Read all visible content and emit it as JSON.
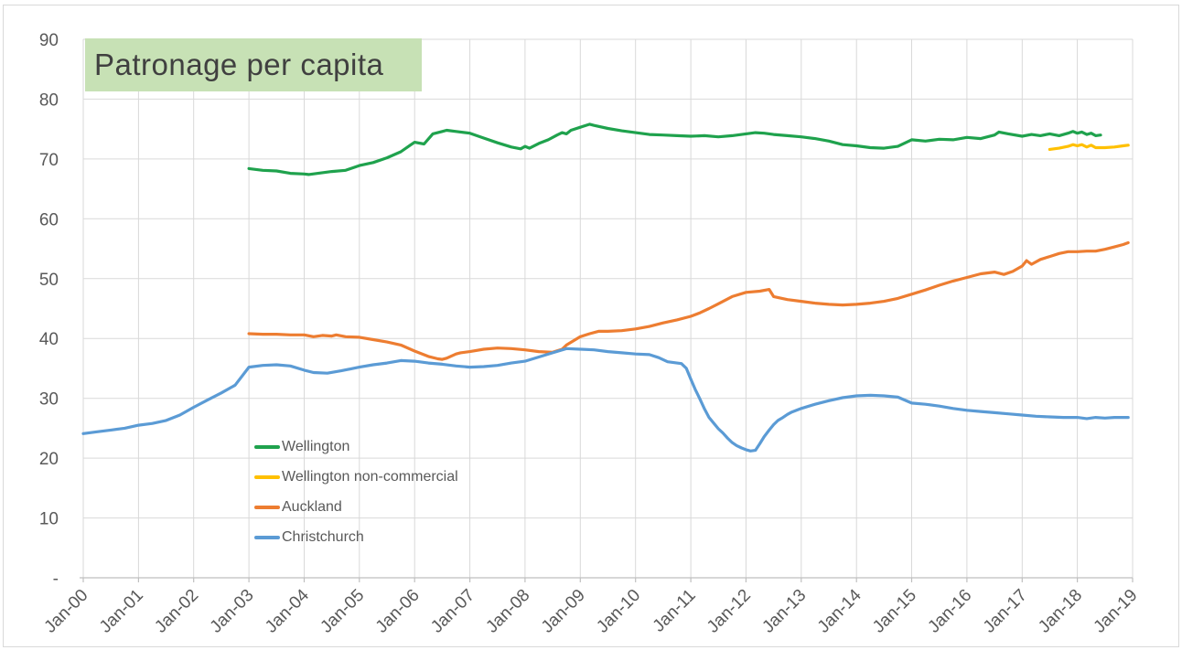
{
  "title": {
    "text": "Patronage per capita",
    "background": "#c7e1b5",
    "text_color": "#404040"
  },
  "chart_data": {
    "type": "line",
    "title": "Patronage per capita",
    "xlabel": "",
    "ylabel": "",
    "grid": true,
    "legend_position": "inside-bottom-left",
    "grid_color": "#d9d9d9",
    "axis_color": "#bfbfbf",
    "label_color": "#595959",
    "x_axis": {
      "range": [
        2000,
        2019
      ],
      "tick_values": [
        2000,
        2001,
        2002,
        2003,
        2004,
        2005,
        2006,
        2007,
        2008,
        2009,
        2010,
        2011,
        2012,
        2013,
        2014,
        2015,
        2016,
        2017,
        2018,
        2019
      ],
      "tick_labels": [
        "Jan-00",
        "Jan-01",
        "Jan-02",
        "Jan-03",
        "Jan-04",
        "Jan-05",
        "Jan-06",
        "Jan-07",
        "Jan-08",
        "Jan-09",
        "Jan-10",
        "Jan-11",
        "Jan-12",
        "Jan-13",
        "Jan-14",
        "Jan-15",
        "Jan-16",
        "Jan-17",
        "Jan-18",
        "Jan-19"
      ]
    },
    "y_axis": {
      "range": [
        0,
        90
      ],
      "tick_values": [
        0,
        10,
        20,
        30,
        40,
        50,
        60,
        70,
        80,
        90
      ],
      "tick_labels": [
        "-",
        "10",
        "20",
        "30",
        "40",
        "50",
        "60",
        "70",
        "80",
        "90"
      ]
    },
    "series": [
      {
        "name": "Wellington",
        "color": "#1fa24d",
        "points": [
          [
            2003.0,
            68.4
          ],
          [
            2003.25,
            68.1
          ],
          [
            2003.5,
            68.0
          ],
          [
            2003.75,
            67.6
          ],
          [
            2004.0,
            67.5
          ],
          [
            2004.08,
            67.4
          ],
          [
            2004.25,
            67.6
          ],
          [
            2004.5,
            67.9
          ],
          [
            2004.75,
            68.1
          ],
          [
            2005.0,
            68.9
          ],
          [
            2005.25,
            69.4
          ],
          [
            2005.5,
            70.2
          ],
          [
            2005.75,
            71.2
          ],
          [
            2005.92,
            72.3
          ],
          [
            2006.0,
            72.8
          ],
          [
            2006.17,
            72.5
          ],
          [
            2006.33,
            74.2
          ],
          [
            2006.5,
            74.6
          ],
          [
            2006.58,
            74.8
          ],
          [
            2006.75,
            74.6
          ],
          [
            2007.0,
            74.3
          ],
          [
            2007.25,
            73.5
          ],
          [
            2007.5,
            72.7
          ],
          [
            2007.75,
            72.0
          ],
          [
            2007.92,
            71.7
          ],
          [
            2008.0,
            72.1
          ],
          [
            2008.08,
            71.8
          ],
          [
            2008.25,
            72.6
          ],
          [
            2008.42,
            73.2
          ],
          [
            2008.58,
            74.0
          ],
          [
            2008.67,
            74.4
          ],
          [
            2008.75,
            74.2
          ],
          [
            2008.83,
            74.8
          ],
          [
            2009.0,
            75.3
          ],
          [
            2009.17,
            75.8
          ],
          [
            2009.25,
            75.6
          ],
          [
            2009.5,
            75.1
          ],
          [
            2009.75,
            74.7
          ],
          [
            2010.0,
            74.4
          ],
          [
            2010.25,
            74.1
          ],
          [
            2010.5,
            74.0
          ],
          [
            2010.75,
            73.9
          ],
          [
            2011.0,
            73.8
          ],
          [
            2011.25,
            73.9
          ],
          [
            2011.5,
            73.7
          ],
          [
            2011.75,
            73.9
          ],
          [
            2012.0,
            74.2
          ],
          [
            2012.17,
            74.4
          ],
          [
            2012.33,
            74.3
          ],
          [
            2012.5,
            74.1
          ],
          [
            2012.75,
            73.9
          ],
          [
            2013.0,
            73.7
          ],
          [
            2013.25,
            73.4
          ],
          [
            2013.5,
            73.0
          ],
          [
            2013.75,
            72.4
          ],
          [
            2014.0,
            72.2
          ],
          [
            2014.25,
            71.9
          ],
          [
            2014.5,
            71.8
          ],
          [
            2014.75,
            72.1
          ],
          [
            2015.0,
            73.2
          ],
          [
            2015.25,
            73.0
          ],
          [
            2015.5,
            73.3
          ],
          [
            2015.75,
            73.2
          ],
          [
            2016.0,
            73.6
          ],
          [
            2016.25,
            73.4
          ],
          [
            2016.5,
            74.0
          ],
          [
            2016.58,
            74.5
          ],
          [
            2016.75,
            74.2
          ],
          [
            2017.0,
            73.8
          ],
          [
            2017.17,
            74.1
          ],
          [
            2017.33,
            73.9
          ],
          [
            2017.5,
            74.2
          ],
          [
            2017.67,
            73.9
          ],
          [
            2017.83,
            74.3
          ],
          [
            2017.92,
            74.6
          ],
          [
            2018.0,
            74.3
          ],
          [
            2018.08,
            74.5
          ],
          [
            2018.17,
            74.1
          ],
          [
            2018.25,
            74.3
          ],
          [
            2018.33,
            73.9
          ],
          [
            2018.42,
            74.0
          ]
        ]
      },
      {
        "name": "Wellington non-commercial",
        "color": "#ffc000",
        "points": [
          [
            2017.5,
            71.6
          ],
          [
            2017.67,
            71.8
          ],
          [
            2017.83,
            72.1
          ],
          [
            2017.92,
            72.4
          ],
          [
            2018.0,
            72.2
          ],
          [
            2018.08,
            72.4
          ],
          [
            2018.17,
            72.0
          ],
          [
            2018.25,
            72.3
          ],
          [
            2018.33,
            71.9
          ],
          [
            2018.5,
            71.9
          ],
          [
            2018.67,
            72.0
          ],
          [
            2018.83,
            72.2
          ],
          [
            2018.92,
            72.3
          ]
        ]
      },
      {
        "name": "Auckland",
        "color": "#ed7d31",
        "points": [
          [
            2003.0,
            40.8
          ],
          [
            2003.25,
            40.7
          ],
          [
            2003.5,
            40.7
          ],
          [
            2003.75,
            40.6
          ],
          [
            2004.0,
            40.6
          ],
          [
            2004.17,
            40.3
          ],
          [
            2004.33,
            40.5
          ],
          [
            2004.5,
            40.4
          ],
          [
            2004.58,
            40.6
          ],
          [
            2004.75,
            40.3
          ],
          [
            2005.0,
            40.2
          ],
          [
            2005.25,
            39.8
          ],
          [
            2005.5,
            39.4
          ],
          [
            2005.75,
            38.9
          ],
          [
            2006.0,
            37.9
          ],
          [
            2006.25,
            37.0
          ],
          [
            2006.42,
            36.6
          ],
          [
            2006.5,
            36.5
          ],
          [
            2006.58,
            36.7
          ],
          [
            2006.75,
            37.4
          ],
          [
            2006.83,
            37.6
          ],
          [
            2007.0,
            37.8
          ],
          [
            2007.25,
            38.2
          ],
          [
            2007.5,
            38.4
          ],
          [
            2007.75,
            38.3
          ],
          [
            2008.0,
            38.1
          ],
          [
            2008.25,
            37.8
          ],
          [
            2008.5,
            37.7
          ],
          [
            2008.67,
            38.2
          ],
          [
            2008.75,
            38.9
          ],
          [
            2009.0,
            40.3
          ],
          [
            2009.17,
            40.8
          ],
          [
            2009.33,
            41.2
          ],
          [
            2009.5,
            41.2
          ],
          [
            2009.75,
            41.3
          ],
          [
            2010.0,
            41.6
          ],
          [
            2010.25,
            42.0
          ],
          [
            2010.5,
            42.6
          ],
          [
            2010.75,
            43.1
          ],
          [
            2011.0,
            43.7
          ],
          [
            2011.17,
            44.3
          ],
          [
            2011.33,
            45.0
          ],
          [
            2011.5,
            45.8
          ],
          [
            2011.75,
            47.0
          ],
          [
            2012.0,
            47.7
          ],
          [
            2012.25,
            47.9
          ],
          [
            2012.42,
            48.2
          ],
          [
            2012.5,
            47.0
          ],
          [
            2012.75,
            46.5
          ],
          [
            2013.0,
            46.2
          ],
          [
            2013.25,
            45.9
          ],
          [
            2013.5,
            45.7
          ],
          [
            2013.75,
            45.6
          ],
          [
            2014.0,
            45.7
          ],
          [
            2014.25,
            45.9
          ],
          [
            2014.5,
            46.2
          ],
          [
            2014.75,
            46.7
          ],
          [
            2015.0,
            47.4
          ],
          [
            2015.25,
            48.1
          ],
          [
            2015.5,
            48.9
          ],
          [
            2015.75,
            49.6
          ],
          [
            2016.0,
            50.2
          ],
          [
            2016.25,
            50.8
          ],
          [
            2016.5,
            51.1
          ],
          [
            2016.67,
            50.7
          ],
          [
            2016.83,
            51.2
          ],
          [
            2017.0,
            52.1
          ],
          [
            2017.08,
            53.0
          ],
          [
            2017.17,
            52.4
          ],
          [
            2017.33,
            53.2
          ],
          [
            2017.5,
            53.7
          ],
          [
            2017.67,
            54.2
          ],
          [
            2017.83,
            54.5
          ],
          [
            2018.0,
            54.5
          ],
          [
            2018.17,
            54.6
          ],
          [
            2018.33,
            54.6
          ],
          [
            2018.5,
            54.9
          ],
          [
            2018.67,
            55.3
          ],
          [
            2018.83,
            55.7
          ],
          [
            2018.92,
            56.0
          ]
        ]
      },
      {
        "name": "Christchurch",
        "color": "#5b9bd5",
        "points": [
          [
            2000.0,
            24.1
          ],
          [
            2000.25,
            24.4
          ],
          [
            2000.5,
            24.7
          ],
          [
            2000.75,
            25.0
          ],
          [
            2001.0,
            25.5
          ],
          [
            2001.25,
            25.8
          ],
          [
            2001.5,
            26.3
          ],
          [
            2001.75,
            27.2
          ],
          [
            2002.0,
            28.5
          ],
          [
            2002.25,
            29.7
          ],
          [
            2002.5,
            30.9
          ],
          [
            2002.75,
            32.2
          ],
          [
            2003.0,
            35.2
          ],
          [
            2003.25,
            35.5
          ],
          [
            2003.5,
            35.6
          ],
          [
            2003.75,
            35.4
          ],
          [
            2004.0,
            34.7
          ],
          [
            2004.17,
            34.3
          ],
          [
            2004.42,
            34.2
          ],
          [
            2004.67,
            34.6
          ],
          [
            2005.0,
            35.2
          ],
          [
            2005.25,
            35.6
          ],
          [
            2005.5,
            35.9
          ],
          [
            2005.75,
            36.3
          ],
          [
            2006.0,
            36.2
          ],
          [
            2006.25,
            35.9
          ],
          [
            2006.5,
            35.7
          ],
          [
            2006.75,
            35.4
          ],
          [
            2007.0,
            35.2
          ],
          [
            2007.25,
            35.3
          ],
          [
            2007.5,
            35.5
          ],
          [
            2007.75,
            35.9
          ],
          [
            2008.0,
            36.2
          ],
          [
            2008.25,
            36.9
          ],
          [
            2008.5,
            37.6
          ],
          [
            2008.75,
            38.3
          ],
          [
            2009.0,
            38.2
          ],
          [
            2009.25,
            38.1
          ],
          [
            2009.5,
            37.8
          ],
          [
            2009.75,
            37.6
          ],
          [
            2010.0,
            37.4
          ],
          [
            2010.25,
            37.3
          ],
          [
            2010.42,
            36.8
          ],
          [
            2010.58,
            36.1
          ],
          [
            2010.75,
            35.9
          ],
          [
            2010.83,
            35.8
          ],
          [
            2010.92,
            35.0
          ],
          [
            2011.0,
            33.2
          ],
          [
            2011.08,
            31.5
          ],
          [
            2011.17,
            29.8
          ],
          [
            2011.25,
            28.2
          ],
          [
            2011.33,
            26.8
          ],
          [
            2011.42,
            25.8
          ],
          [
            2011.5,
            24.9
          ],
          [
            2011.58,
            24.2
          ],
          [
            2011.67,
            23.3
          ],
          [
            2011.75,
            22.6
          ],
          [
            2011.83,
            22.1
          ],
          [
            2011.92,
            21.7
          ],
          [
            2012.0,
            21.4
          ],
          [
            2012.08,
            21.2
          ],
          [
            2012.17,
            21.3
          ],
          [
            2012.25,
            22.4
          ],
          [
            2012.33,
            23.6
          ],
          [
            2012.42,
            24.7
          ],
          [
            2012.5,
            25.6
          ],
          [
            2012.58,
            26.3
          ],
          [
            2012.67,
            26.8
          ],
          [
            2012.75,
            27.3
          ],
          [
            2012.83,
            27.7
          ],
          [
            2013.0,
            28.3
          ],
          [
            2013.25,
            29.0
          ],
          [
            2013.5,
            29.6
          ],
          [
            2013.75,
            30.1
          ],
          [
            2014.0,
            30.4
          ],
          [
            2014.25,
            30.5
          ],
          [
            2014.5,
            30.4
          ],
          [
            2014.75,
            30.2
          ],
          [
            2015.0,
            29.2
          ],
          [
            2015.25,
            29.0
          ],
          [
            2015.5,
            28.7
          ],
          [
            2015.75,
            28.3
          ],
          [
            2016.0,
            28.0
          ],
          [
            2016.25,
            27.8
          ],
          [
            2016.5,
            27.6
          ],
          [
            2016.75,
            27.4
          ],
          [
            2017.0,
            27.2
          ],
          [
            2017.25,
            27.0
          ],
          [
            2017.5,
            26.9
          ],
          [
            2017.75,
            26.8
          ],
          [
            2018.0,
            26.8
          ],
          [
            2018.17,
            26.6
          ],
          [
            2018.33,
            26.8
          ],
          [
            2018.5,
            26.7
          ],
          [
            2018.67,
            26.8
          ],
          [
            2018.92,
            26.8
          ]
        ]
      }
    ]
  }
}
